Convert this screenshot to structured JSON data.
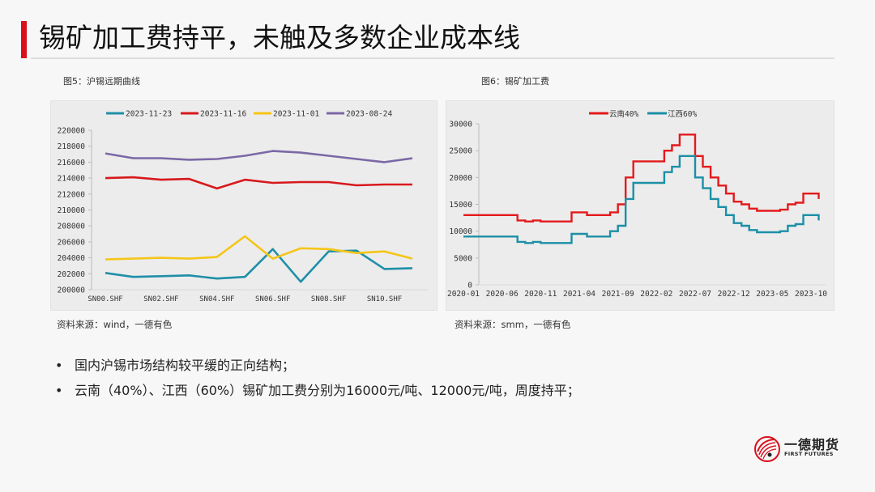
{
  "header": {
    "title": "锡矿加工费持平，未触及多数企业成本线",
    "accent_color": "#d9101c"
  },
  "figures": [
    {
      "caption": "图5：沪锡远期曲线",
      "source": "资料来源：wind，一德有色"
    },
    {
      "caption": "图6：锡矿加工费",
      "source": "资料来源：smm，一德有色"
    }
  ],
  "bullets": [
    {
      "dot": "•",
      "text": "国内沪锡市场结构较平缓的正向结构；"
    },
    {
      "dot": "•",
      "text": "云南（40%）、江西（60%）锡矿加工费分别为16000元/吨、12000元/吨，周度持平；"
    }
  ],
  "logo": {
    "cn": "一德期货",
    "en": "FIRST FUTURES"
  },
  "chart_data": [
    {
      "type": "line",
      "title": "沪锡远期曲线",
      "xlabel": "",
      "ylabel": "",
      "categories": [
        "SN00.SHF",
        "SN01.SHF",
        "SN02.SHF",
        "SN03.SHF",
        "SN04.SHF",
        "SN05.SHF",
        "SN06.SHF",
        "SN07.SHF",
        "SN08.SHF",
        "SN09.SHF",
        "SN10.SHF",
        "SN11.SHF"
      ],
      "x_tick_labels": [
        "SN00.SHF",
        "SN02.SHF",
        "SN04.SHF",
        "SN06.SHF",
        "SN08.SHF",
        "SN10.SHF"
      ],
      "y_ticks": [
        200000,
        202000,
        204000,
        206000,
        208000,
        210000,
        212000,
        214000,
        216000,
        218000,
        220000
      ],
      "ylim": [
        200000,
        220000
      ],
      "grid": false,
      "legend_position": "top",
      "series": [
        {
          "name": "2023-11-23",
          "color": "#1f8fa8",
          "values": [
            202100,
            201600,
            201700,
            201800,
            201400,
            201600,
            205100,
            201000,
            204800,
            204900,
            202600,
            202700
          ]
        },
        {
          "name": "2023-11-16",
          "color": "#d7191c",
          "values": [
            214000,
            214100,
            213800,
            213900,
            212700,
            213800,
            213400,
            213500,
            213500,
            213100,
            213200,
            213200
          ]
        },
        {
          "name": "2023-11-01",
          "color": "#f5c518",
          "values": [
            203800,
            203900,
            204000,
            203900,
            204100,
            206700,
            203900,
            205200,
            205100,
            204600,
            204800,
            203900
          ]
        },
        {
          "name": "2023-08-24",
          "color": "#7b68a6",
          "values": [
            217100,
            216500,
            216500,
            216300,
            216400,
            216800,
            217400,
            217200,
            216800,
            216400,
            216000,
            216500
          ]
        }
      ]
    },
    {
      "type": "line",
      "title": "锡矿加工费",
      "xlabel": "",
      "ylabel": "",
      "x_tick_labels": [
        "2020-01",
        "2020-06",
        "2020-11",
        "2021-04",
        "2021-09",
        "2022-02",
        "2022-07",
        "2022-12",
        "2023-05",
        "2023-10"
      ],
      "y_ticks": [
        0,
        5000,
        10000,
        15000,
        20000,
        25000,
        30000
      ],
      "ylim": [
        0,
        30000
      ],
      "grid": false,
      "legend_position": "top",
      "x": [
        "2020-01",
        "2020-08",
        "2020-09",
        "2020-10",
        "2020-11",
        "2021-03",
        "2021-05",
        "2021-07",
        "2021-08",
        "2021-09",
        "2021-10",
        "2021-11",
        "2022-01",
        "2022-03",
        "2022-04",
        "2022-05",
        "2022-06",
        "2022-07",
        "2022-08",
        "2022-09",
        "2022-10",
        "2022-11",
        "2022-12",
        "2023-01",
        "2023-02",
        "2023-03",
        "2023-04",
        "2023-06",
        "2023-07",
        "2023-08",
        "2023-09",
        "2023-10",
        "2023-11"
      ],
      "series": [
        {
          "name": "云南40%",
          "color": "#e31a1c",
          "values": [
            13000,
            12000,
            11800,
            12000,
            11800,
            13500,
            13000,
            13000,
            13500,
            15000,
            20000,
            23000,
            23000,
            25000,
            26000,
            28000,
            28000,
            24000,
            22000,
            20000,
            18500,
            17000,
            15500,
            15000,
            14200,
            13800,
            13800,
            14000,
            15000,
            15300,
            17000,
            17000,
            16000
          ]
        },
        {
          "name": "江西60%",
          "color": "#1b8fa6",
          "values": [
            9000,
            8000,
            7800,
            8000,
            7800,
            9500,
            9000,
            9000,
            10000,
            11000,
            16000,
            19000,
            19000,
            21000,
            22000,
            24000,
            24000,
            20000,
            18000,
            16000,
            14500,
            13000,
            11500,
            11000,
            10200,
            9800,
            9800,
            10000,
            11000,
            11300,
            13000,
            13000,
            12000
          ]
        }
      ]
    }
  ]
}
